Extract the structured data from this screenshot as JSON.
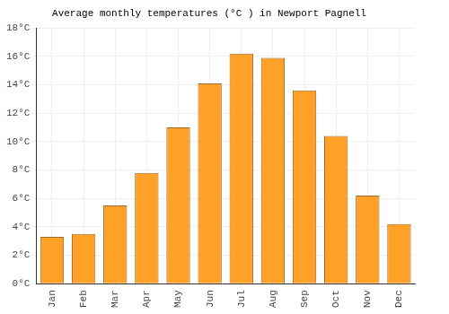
{
  "chart_data": {
    "type": "bar",
    "title": "Average monthly temperatures (°C ) in Newport Pagnell",
    "categories": [
      "Jan",
      "Feb",
      "Mar",
      "Apr",
      "May",
      "Jun",
      "Jul",
      "Aug",
      "Sep",
      "Oct",
      "Nov",
      "Dec"
    ],
    "values": [
      3.3,
      3.5,
      5.5,
      7.8,
      11.0,
      14.1,
      16.2,
      15.9,
      13.6,
      10.4,
      6.2,
      4.2
    ],
    "color": "#ffa126",
    "ylim": [
      0,
      18
    ],
    "yticks": [
      {
        "value": 0,
        "label": "0°C"
      },
      {
        "value": 2,
        "label": "2°C"
      },
      {
        "value": 4,
        "label": "4°C"
      },
      {
        "value": 6,
        "label": "6°C"
      },
      {
        "value": 8,
        "label": "8°C"
      },
      {
        "value": 10,
        "label": "10°C"
      },
      {
        "value": 12,
        "label": "12°C"
      },
      {
        "value": 14,
        "label": "14°C"
      },
      {
        "value": 16,
        "label": "16°C"
      },
      {
        "value": 18,
        "label": "18°C"
      }
    ],
    "grid": true
  }
}
